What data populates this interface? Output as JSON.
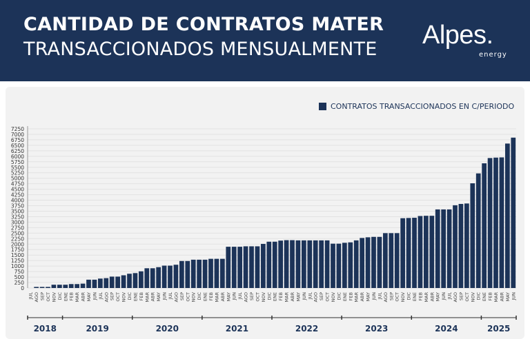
{
  "header": {
    "title_line1": "CANTIDAD DE CONTRATOS MATER",
    "title_line2": "TRANSACCIONADOS MENSUALMENTE",
    "logo_text": "Alpes.",
    "logo_sub": "energy"
  },
  "colors": {
    "header_bg": "#1c3358",
    "bar": "#1c3358",
    "panel_bg": "#f2f2f2"
  },
  "chart_data": {
    "type": "bar",
    "title": "",
    "legend": {
      "label": "CONTRATOS TRANSACCIONADOS EN C/PERIODO",
      "position": "top-right"
    },
    "ylim": [
      0,
      7250
    ],
    "yticks": [
      0,
      250,
      500,
      750,
      1000,
      1250,
      1500,
      1750,
      2000,
      2250,
      2500,
      2750,
      3000,
      3250,
      3500,
      3750,
      4000,
      4250,
      4500,
      4750,
      5000,
      5250,
      5500,
      5750,
      6000,
      6250,
      6500,
      6750,
      7000,
      7250
    ],
    "grid": true,
    "years": [
      {
        "year": "2018",
        "months": [
          "JUL",
          "AGO",
          "SEP",
          "OCT",
          "NOV",
          "DIC"
        ],
        "values": [
          0,
          50,
          50,
          50,
          150,
          150
        ]
      },
      {
        "year": "2019",
        "months": [
          "ENE",
          "FEB",
          "MAR",
          "ABR",
          "MAY",
          "JUN",
          "JUL",
          "AGO",
          "SEP",
          "OCT",
          "NOV",
          "DIC"
        ],
        "values": [
          150,
          180,
          180,
          200,
          380,
          380,
          430,
          450,
          520,
          520,
          580,
          650
        ]
      },
      {
        "year": "2020",
        "months": [
          "ENE",
          "FEB",
          "MAR",
          "ABR",
          "MAY",
          "JUN",
          "JUL",
          "AGO",
          "SEP",
          "OCT",
          "NOV",
          "DIC"
        ],
        "values": [
          680,
          760,
          900,
          900,
          950,
          1020,
          1020,
          1060,
          1230,
          1230,
          1290,
          1290
        ]
      },
      {
        "year": "2021",
        "months": [
          "ENE",
          "FEB",
          "MAR",
          "ABR",
          "MAY",
          "JUN",
          "JUL",
          "AGO",
          "SEP",
          "OCT",
          "NOV",
          "DIC"
        ],
        "values": [
          1290,
          1330,
          1330,
          1330,
          1880,
          1880,
          1880,
          1900,
          1900,
          1900,
          2010,
          2110
        ]
      },
      {
        "year": "2022",
        "months": [
          "ENE",
          "FEB",
          "MAR",
          "ABR",
          "MAY",
          "JUN",
          "JUL",
          "AGO",
          "SEP",
          "OCT",
          "NOV",
          "DIC"
        ],
        "values": [
          2110,
          2160,
          2180,
          2180,
          2170,
          2170,
          2170,
          2170,
          2170,
          2170,
          2020,
          2020
        ]
      },
      {
        "year": "2023",
        "months": [
          "ENE",
          "FEB",
          "MAR",
          "ABR",
          "MAY",
          "JUN",
          "JUL",
          "AGO",
          "SEP",
          "OCT",
          "NOV",
          "DIC"
        ],
        "values": [
          2060,
          2080,
          2170,
          2280,
          2310,
          2330,
          2330,
          2500,
          2500,
          2500,
          3180,
          3190
        ]
      },
      {
        "year": "2024",
        "months": [
          "ENE",
          "FEB",
          "MAR",
          "ABR",
          "MAY",
          "JUN",
          "JUL",
          "AGO",
          "SEP",
          "OCT",
          "NOV",
          "DIC"
        ],
        "values": [
          3200,
          3280,
          3290,
          3290,
          3580,
          3580,
          3580,
          3770,
          3830,
          3850,
          4770,
          5220
        ]
      },
      {
        "year": "2025",
        "months": [
          "ENE",
          "FEB",
          "MAR",
          "ABR",
          "MAY",
          "JUN"
        ],
        "values": [
          5680,
          5920,
          5940,
          5950,
          6580,
          6850
        ]
      }
    ]
  }
}
